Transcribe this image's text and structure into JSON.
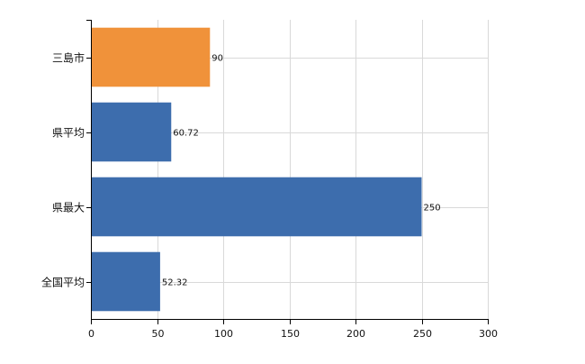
{
  "chart_data": {
    "type": "bar",
    "orientation": "horizontal",
    "title": "",
    "xlabel": "",
    "ylabel": "",
    "categories": [
      "三島市",
      "県平均",
      "県最大",
      "全国平均"
    ],
    "values": [
      90,
      60.72,
      250,
      52.32
    ],
    "data_labels": [
      "90",
      "60.72",
      "250",
      "52.32"
    ],
    "bar_colors": [
      "#F0923A",
      "#3D6DAD",
      "#3D6DAD",
      "#3D6DAD"
    ],
    "xlim": [
      0,
      300
    ],
    "x_ticks": [
      0,
      50,
      100,
      150,
      200,
      250,
      300
    ],
    "x_tick_labels": [
      "0",
      "50",
      "100",
      "150",
      "200",
      "250",
      "300"
    ],
    "grid": true,
    "grid_color": "#D9D9D9",
    "axis_color": "#000000"
  }
}
